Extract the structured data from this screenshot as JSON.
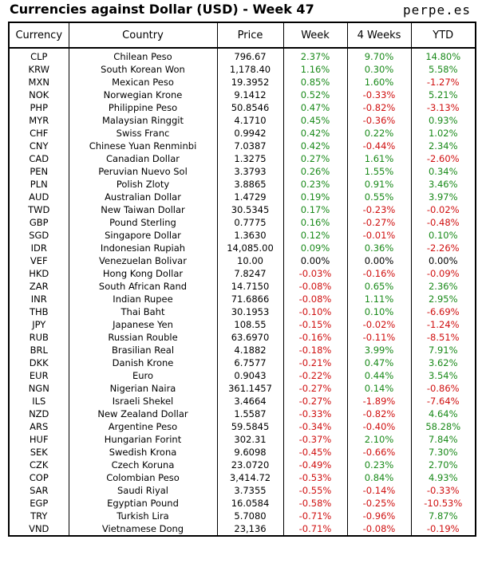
{
  "title": "Currencies against Dollar (USD) - Week 47",
  "brand": "perpe.es",
  "colors": {
    "positive": "#1a8a1a",
    "negative": "#d01010",
    "neutral": "#000000"
  },
  "chart_data": {
    "type": "table",
    "columns": [
      "Currency",
      "Country",
      "Price",
      "Week",
      "4 Weeks",
      "YTD"
    ],
    "rows": [
      [
        "CLP",
        "Chilean Peso",
        "796.67",
        "2.37%",
        "9.70%",
        "14.80%"
      ],
      [
        "KRW",
        "South Korean Won",
        "1,178.40",
        "1.16%",
        "0.30%",
        "5.58%"
      ],
      [
        "MXN",
        "Mexican Peso",
        "19.3952",
        "0.85%",
        "1.60%",
        "-1.27%"
      ],
      [
        "NOK",
        "Norwegian Krone",
        "9.1412",
        "0.52%",
        "-0.33%",
        "5.21%"
      ],
      [
        "PHP",
        "Philippine Peso",
        "50.8546",
        "0.47%",
        "-0.82%",
        "-3.13%"
      ],
      [
        "MYR",
        "Malaysian Ringgit",
        "4.1710",
        "0.45%",
        "-0.36%",
        "0.93%"
      ],
      [
        "CHF",
        "Swiss Franc",
        "0.9942",
        "0.42%",
        "0.22%",
        "1.02%"
      ],
      [
        "CNY",
        "Chinese Yuan Renminbi",
        "7.0387",
        "0.42%",
        "-0.44%",
        "2.34%"
      ],
      [
        "CAD",
        "Canadian Dollar",
        "1.3275",
        "0.27%",
        "1.61%",
        "-2.60%"
      ],
      [
        "PEN",
        "Peruvian Nuevo Sol",
        "3.3793",
        "0.26%",
        "1.55%",
        "0.34%"
      ],
      [
        "PLN",
        "Polish Zloty",
        "3.8865",
        "0.23%",
        "0.91%",
        "3.46%"
      ],
      [
        "AUD",
        "Australian Dollar",
        "1.4729",
        "0.19%",
        "0.55%",
        "3.97%"
      ],
      [
        "TWD",
        "New Taiwan Dollar",
        "30.5345",
        "0.17%",
        "-0.23%",
        "-0.02%"
      ],
      [
        "GBP",
        "Pound Sterling",
        "0.7775",
        "0.16%",
        "-0.27%",
        "-0.48%"
      ],
      [
        "SGD",
        "Singapore Dollar",
        "1.3630",
        "0.12%",
        "-0.01%",
        "0.10%"
      ],
      [
        "IDR",
        "Indonesian Rupiah",
        "14,085.00",
        "0.09%",
        "0.36%",
        "-2.26%"
      ],
      [
        "VEF",
        "Venezuelan Bolivar",
        "10.00",
        "0.00%",
        "0.00%",
        "0.00%"
      ],
      [
        "HKD",
        "Hong Kong Dollar",
        "7.8247",
        "-0.03%",
        "-0.16%",
        "-0.09%"
      ],
      [
        "ZAR",
        "South African Rand",
        "14.7150",
        "-0.08%",
        "0.65%",
        "2.36%"
      ],
      [
        "INR",
        "Indian Rupee",
        "71.6866",
        "-0.08%",
        "1.11%",
        "2.95%"
      ],
      [
        "THB",
        "Thai Baht",
        "30.1953",
        "-0.10%",
        "0.10%",
        "-6.69%"
      ],
      [
        "JPY",
        "Japanese Yen",
        "108.55",
        "-0.15%",
        "-0.02%",
        "-1.24%"
      ],
      [
        "RUB",
        "Russian Rouble",
        "63.6970",
        "-0.16%",
        "-0.11%",
        "-8.51%"
      ],
      [
        "BRL",
        "Brasilian Real",
        "4.1882",
        "-0.18%",
        "3.99%",
        "7.91%"
      ],
      [
        "DKK",
        "Danish Krone",
        "6.7577",
        "-0.21%",
        "0.47%",
        "3.62%"
      ],
      [
        "EUR",
        "Euro",
        "0.9043",
        "-0.22%",
        "0.44%",
        "3.54%"
      ],
      [
        "NGN",
        "Nigerian Naira",
        "361.1457",
        "-0.27%",
        "0.14%",
        "-0.86%"
      ],
      [
        "ILS",
        "Israeli Shekel",
        "3.4664",
        "-0.27%",
        "-1.89%",
        "-7.64%"
      ],
      [
        "NZD",
        "New Zealand Dollar",
        "1.5587",
        "-0.33%",
        "-0.82%",
        "4.64%"
      ],
      [
        "ARS",
        "Argentine Peso",
        "59.5845",
        "-0.34%",
        "-0.40%",
        "58.28%"
      ],
      [
        "HUF",
        "Hungarian Forint",
        "302.31",
        "-0.37%",
        "2.10%",
        "7.84%"
      ],
      [
        "SEK",
        "Swedish Krona",
        "9.6098",
        "-0.45%",
        "-0.66%",
        "7.30%"
      ],
      [
        "CZK",
        "Czech Koruna",
        "23.0720",
        "-0.49%",
        "0.23%",
        "2.70%"
      ],
      [
        "COP",
        "Colombian Peso",
        "3,414.72",
        "-0.53%",
        "0.84%",
        "4.93%"
      ],
      [
        "SAR",
        "Saudi Riyal",
        "3.7355",
        "-0.55%",
        "-0.14%",
        "-0.33%"
      ],
      [
        "EGP",
        "Egyptian Pound",
        "16.0584",
        "-0.58%",
        "-0.25%",
        "-10.53%"
      ],
      [
        "TRY",
        "Turkish Lira",
        "5.7080",
        "-0.71%",
        "-0.96%",
        "7.87%"
      ],
      [
        "VND",
        "Vietnamese Dong",
        "23,136",
        "-0.71%",
        "-0.08%",
        "-0.19%"
      ]
    ]
  }
}
